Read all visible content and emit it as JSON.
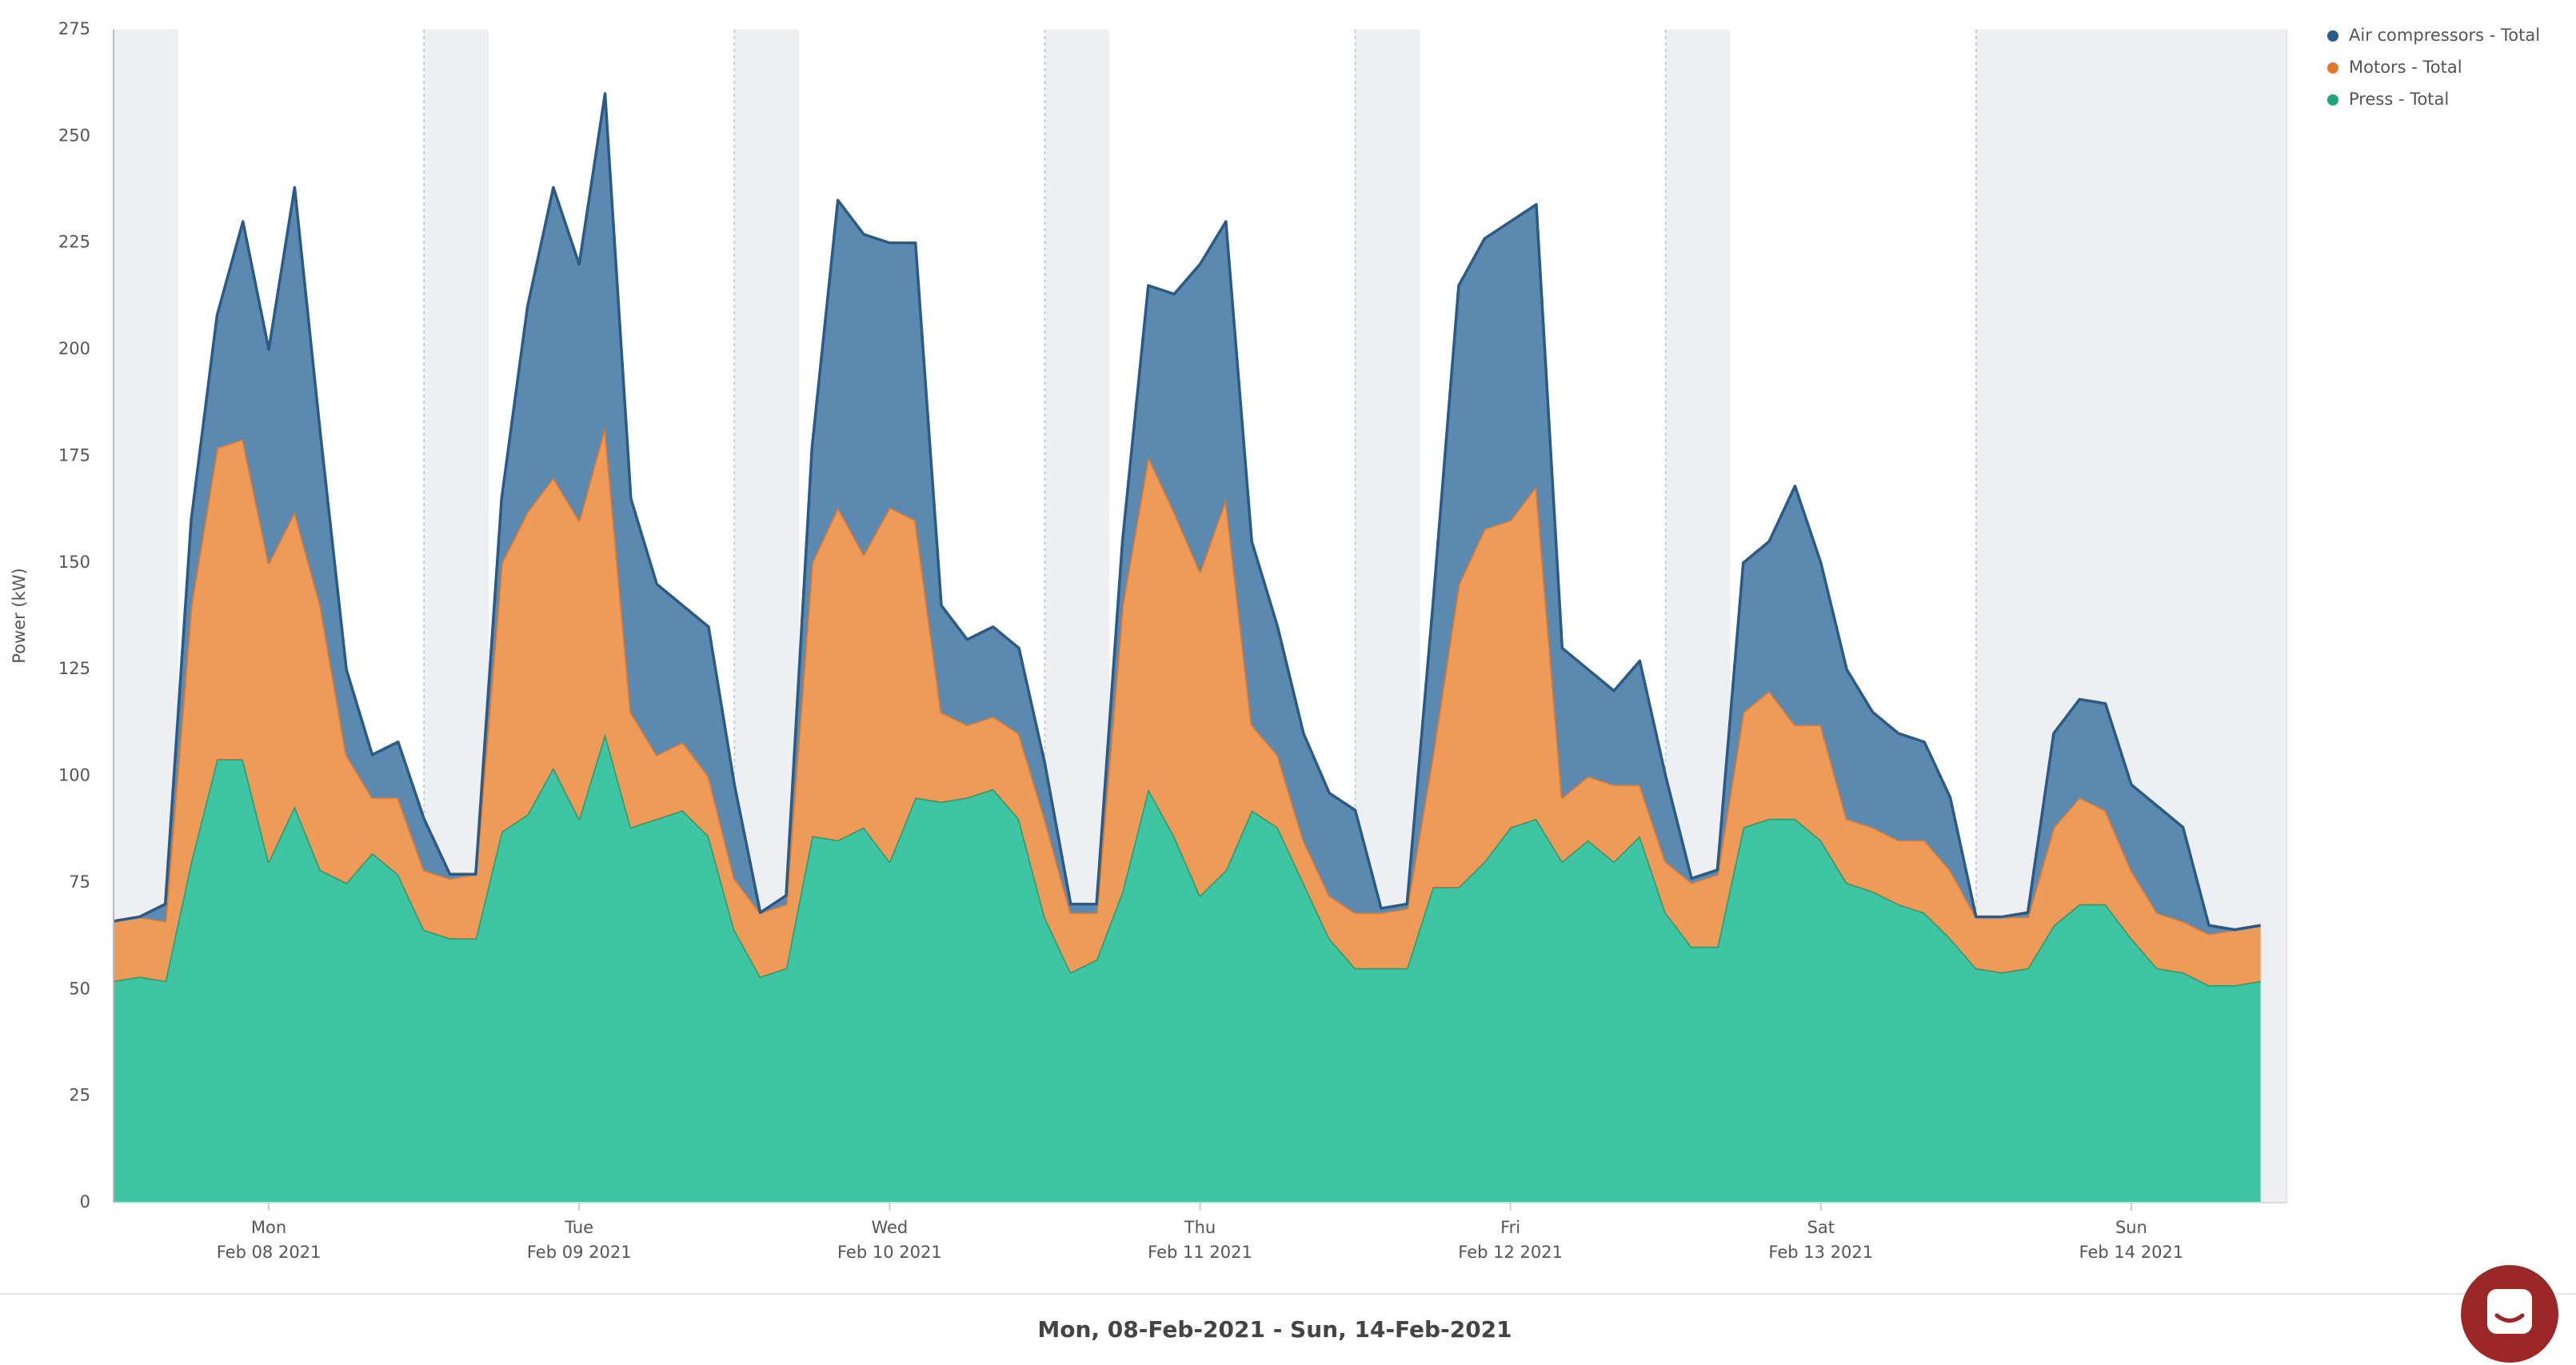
{
  "chart_data": {
    "type": "stacked_area",
    "y_label": "Power (kW)",
    "footer": "Mon, 08-Feb-2021 - Sun, 14-Feb-2021",
    "ylim": [
      0,
      275
    ],
    "yticks": [
      0,
      25,
      50,
      75,
      100,
      125,
      150,
      175,
      200,
      225,
      250,
      275
    ],
    "xlim": [
      0,
      84
    ],
    "xticks": [
      {
        "value": 6,
        "label": "Mon",
        "sublabel": "Feb 08 2021"
      },
      {
        "value": 18,
        "label": "Tue",
        "sublabel": "Feb 09 2021"
      },
      {
        "value": 30,
        "label": "Wed",
        "sublabel": "Feb 10 2021"
      },
      {
        "value": 42,
        "label": "Thu",
        "sublabel": "Feb 11 2021"
      },
      {
        "value": 54,
        "label": "Fri",
        "sublabel": "Feb 12 2021"
      },
      {
        "value": 66,
        "label": "Sat",
        "sublabel": "Feb 13 2021"
      },
      {
        "value": 78,
        "label": "Sun",
        "sublabel": "Feb 14 2021"
      }
    ],
    "bands": [
      [
        0,
        2.5
      ],
      [
        12,
        14.5
      ],
      [
        24,
        26.5
      ],
      [
        36,
        38.5
      ],
      [
        48,
        50.5
      ],
      [
        60,
        62.5
      ],
      [
        72,
        84
      ]
    ],
    "grid": false,
    "legend": "top-right",
    "series": [
      {
        "name": "Air compressors - Total",
        "color": "#5b89b0",
        "line_color": "#2a5a86",
        "values": [
          0,
          0,
          4,
          20,
          31,
          51,
          50,
          76,
          40,
          20,
          10,
          13,
          12,
          1,
          0,
          15,
          48,
          68,
          60,
          78,
          50,
          40,
          32,
          35,
          22,
          0,
          2,
          27,
          72,
          75,
          62,
          65,
          25,
          20,
          21,
          20,
          13,
          2,
          2,
          15,
          40,
          51,
          72,
          65,
          43,
          30,
          25,
          24,
          24,
          1,
          1,
          35,
          70,
          68,
          70,
          66,
          35,
          25,
          22,
          29,
          20,
          1,
          1,
          35,
          35,
          56,
          38,
          35,
          27,
          25,
          23,
          17,
          0,
          0,
          1,
          22,
          23,
          25,
          20,
          25,
          22,
          2,
          0,
          0
        ]
      },
      {
        "name": "Motors - Total",
        "color": "#ee9a58",
        "line_color": "#e2792a",
        "values": [
          14,
          14,
          14,
          60,
          73,
          75,
          70,
          69,
          62,
          30,
          13,
          18,
          14,
          14,
          15,
          63,
          71,
          68,
          70,
          72,
          27,
          15,
          16,
          14,
          12,
          15,
          15,
          64,
          78,
          64,
          83,
          65,
          21,
          17,
          17,
          20,
          23,
          14,
          11,
          67,
          78,
          76,
          76,
          87,
          20,
          17,
          10,
          10,
          13,
          13,
          14,
          31,
          71,
          78,
          72,
          78,
          15,
          15,
          18,
          12,
          12,
          15,
          17,
          27,
          30,
          22,
          27,
          15,
          15,
          15,
          17,
          16,
          12,
          13,
          12,
          23,
          25,
          22,
          16,
          13,
          12,
          12,
          13,
          13
        ]
      },
      {
        "name": "Press - Total",
        "color": "#40c5a4",
        "line_color": "#1fa57c",
        "values": [
          52,
          53,
          52,
          80,
          104,
          104,
          80,
          93,
          78,
          75,
          82,
          77,
          64,
          62,
          62,
          87,
          91,
          102,
          90,
          110,
          88,
          90,
          92,
          86,
          64,
          53,
          55,
          86,
          85,
          88,
          80,
          95,
          94,
          95,
          97,
          90,
          67,
          54,
          57,
          73,
          97,
          86,
          72,
          78,
          92,
          88,
          75,
          62,
          55,
          55,
          55,
          74,
          74,
          80,
          88,
          90,
          80,
          85,
          80,
          86,
          68,
          60,
          60,
          88,
          90,
          90,
          85,
          75,
          73,
          70,
          68,
          62,
          55,
          54,
          55,
          65,
          70,
          70,
          62,
          55,
          54,
          51,
          51,
          52
        ]
      }
    ]
  }
}
